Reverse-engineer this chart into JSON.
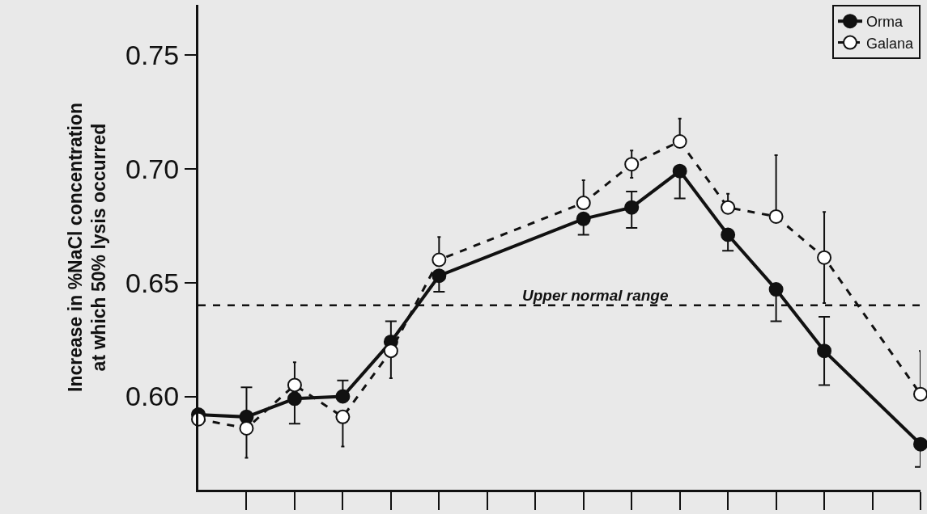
{
  "chart_data": {
    "type": "line",
    "ylabel": "Increase in %NaCl concentration\nat which 50% lysis occurred",
    "categories": [
      null,
      null,
      null,
      null,
      null,
      null,
      null,
      null,
      null,
      null,
      null,
      null,
      null,
      null,
      null,
      null
    ],
    "series": [
      {
        "name": "Orma",
        "color": "#111111",
        "marker": "circle",
        "line_style": "solid",
        "values": [
          0.592,
          0.591,
          0.599,
          0.6,
          0.624,
          0.653,
          null,
          null,
          0.678,
          0.683,
          0.699,
          0.671,
          0.647,
          0.62,
          null,
          0.579
        ],
        "errors": [
          null,
          [
            0.591,
            0.604
          ],
          [
            0.588,
            0.599
          ],
          [
            0.6,
            0.607
          ],
          [
            0.624,
            0.633
          ],
          [
            0.646,
            0.653
          ],
          null,
          null,
          [
            0.671,
            0.678
          ],
          [
            0.674,
            0.69
          ],
          [
            0.687,
            0.699
          ],
          [
            0.664,
            0.671
          ],
          [
            0.633,
            0.647
          ],
          [
            0.605,
            0.635
          ],
          null,
          [
            0.569,
            0.579
          ]
        ]
      },
      {
        "name": "Galana",
        "color": "#111111",
        "marker": "circle",
        "line_style": "dashed",
        "values": [
          0.59,
          0.586,
          0.605,
          0.591,
          0.62,
          0.66,
          null,
          null,
          0.685,
          0.702,
          0.712,
          0.683,
          0.679,
          0.661,
          null,
          0.601
        ],
        "errors": [
          null,
          [
            0.573,
            0.586
          ],
          [
            0.605,
            0.615
          ],
          [
            0.578,
            0.591
          ],
          [
            0.608,
            0.62
          ],
          [
            0.66,
            0.67
          ],
          null,
          null,
          [
            0.685,
            0.695
          ],
          [
            0.696,
            0.708
          ],
          [
            0.712,
            0.722
          ],
          [
            0.683,
            0.689
          ],
          [
            0.679,
            0.706
          ],
          [
            0.641,
            0.681
          ],
          null,
          [
            0.601,
            0.62
          ]
        ]
      }
    ],
    "ylim": [
      0.559,
      0.772
    ],
    "yticks": [
      {
        "value": 0.6,
        "label": "0.60"
      },
      {
        "value": 0.65,
        "label": "0.65"
      },
      {
        "value": 0.7,
        "label": "0.70"
      },
      {
        "value": 0.75,
        "label": "0.75"
      }
    ],
    "ref_lines": [
      {
        "axis": "y",
        "value": 0.64,
        "label": "Upper normal range",
        "line_style": "dashed",
        "color": "#111111"
      }
    ],
    "tick_labels": "y",
    "grid": false,
    "legend": "top right"
  }
}
